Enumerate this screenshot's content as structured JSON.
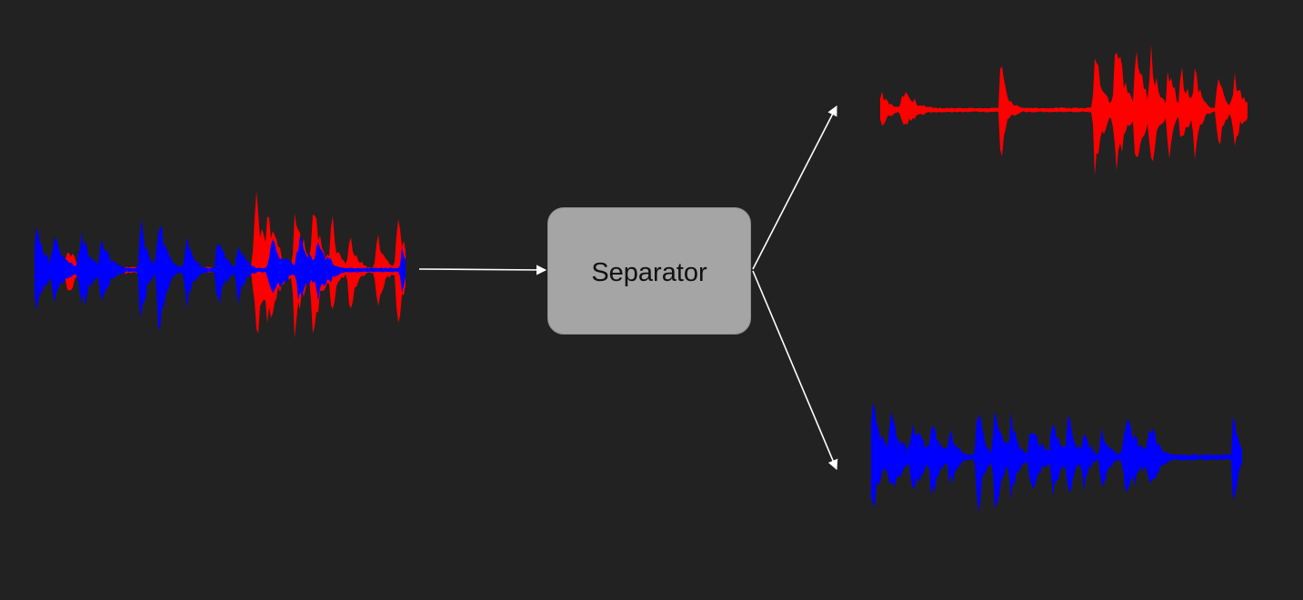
{
  "separator": {
    "label": "Separator"
  },
  "colors": {
    "background": "#222222",
    "source_a": "#ff0000",
    "source_b": "#0000ff",
    "arrow": "#ffffff",
    "box": "#a5a5a5"
  },
  "nodes": {
    "input": "mixed-waveform",
    "output_top": "red-source-waveform",
    "output_bottom": "blue-source-waveform"
  }
}
